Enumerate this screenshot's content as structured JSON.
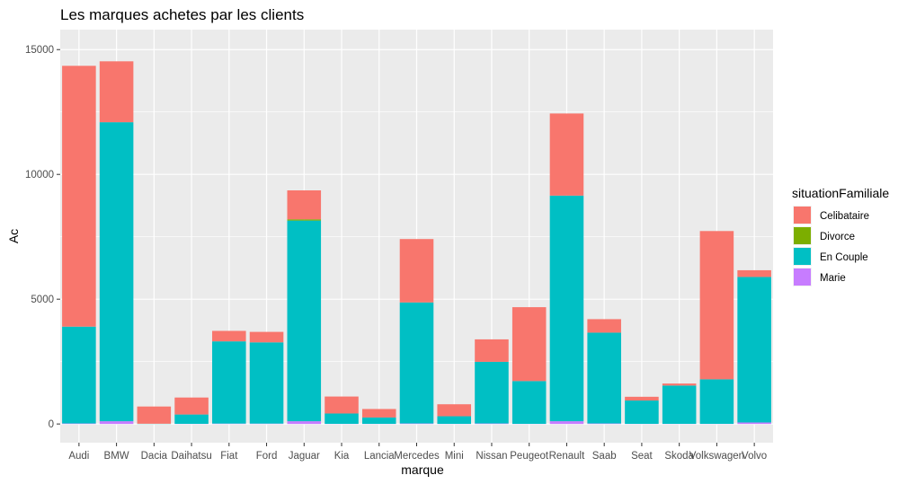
{
  "chart_data": {
    "type": "bar",
    "stacked": true,
    "title": "Les marques achetes par les clients",
    "xlabel": "marque",
    "ylabel": "Ac",
    "ylim": [
      0,
      15000
    ],
    "yticks": [
      0,
      5000,
      10000,
      15000
    ],
    "ytick_labels": [
      "0",
      "5000",
      "10000",
      "15000"
    ],
    "grid": true,
    "legend": {
      "title": "situationFamiliale",
      "position": "right"
    },
    "categories": [
      "Audi",
      "BMW",
      "Dacia",
      "Daihatsu",
      "Fiat",
      "Ford",
      "Jaguar",
      "Kia",
      "Lancia",
      "Mercedes",
      "Mini",
      "Nissan",
      "Peugeot",
      "Renault",
      "Saab",
      "Seat",
      "Skoda",
      "Volkswagen",
      "Volvo"
    ],
    "series": [
      {
        "name": "Marie",
        "color": "#C77CFF",
        "values": [
          20,
          110,
          0,
          5,
          15,
          15,
          110,
          5,
          5,
          20,
          5,
          20,
          5,
          110,
          20,
          5,
          5,
          5,
          60
        ]
      },
      {
        "name": "En Couple",
        "color": "#00BFC4",
        "values": [
          3880,
          11980,
          10,
          375,
          3295,
          3255,
          8040,
          415,
          255,
          4850,
          305,
          2470,
          1715,
          9040,
          3640,
          935,
          1535,
          1785,
          5830
        ]
      },
      {
        "name": "Divorce",
        "color": "#7CAE00",
        "values": [
          0,
          0,
          0,
          0,
          0,
          0,
          50,
          0,
          0,
          0,
          0,
          0,
          0,
          0,
          0,
          0,
          0,
          0,
          0
        ]
      },
      {
        "name": "Celibataire",
        "color": "#F8766D",
        "values": [
          10450,
          2440,
          690,
          680,
          420,
          420,
          1160,
          680,
          340,
          2540,
          480,
          900,
          2960,
          3290,
          540,
          150,
          80,
          5940,
          270
        ]
      }
    ],
    "legend_order": [
      "Celibataire",
      "Divorce",
      "En Couple",
      "Marie"
    ],
    "panel_background": "#EBEBEB",
    "grid_color": "#FFFFFF"
  }
}
